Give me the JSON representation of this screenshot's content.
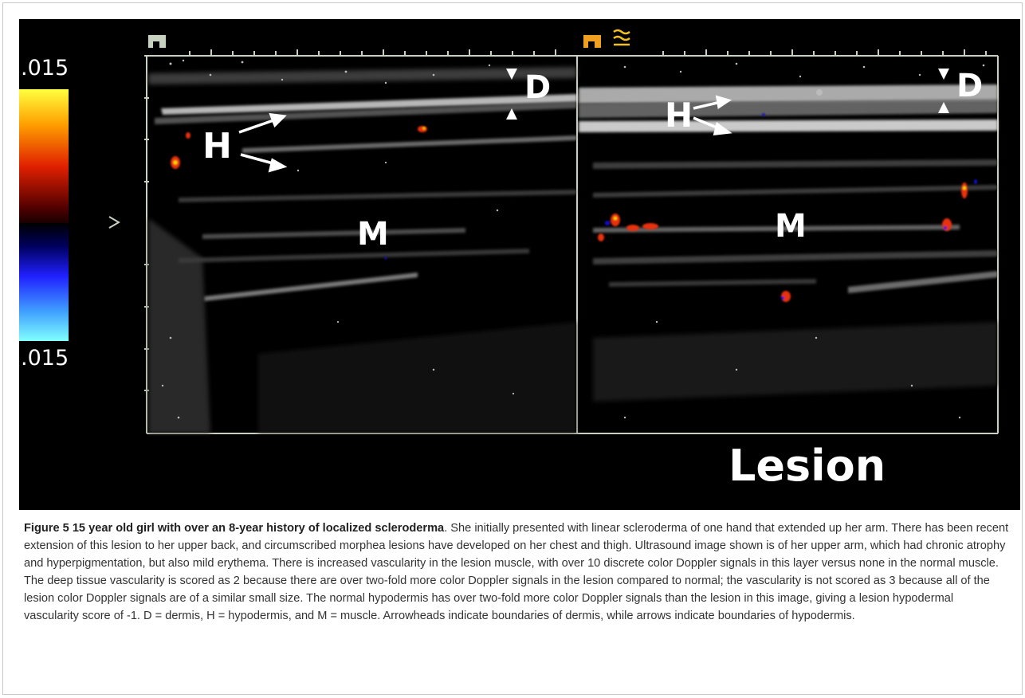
{
  "figure": {
    "image": {
      "color_scale": {
        "top_label": ".015",
        "bottom_label": ".015"
      },
      "left_panel": {
        "D_label": "D",
        "H_label": "H",
        "M_label": "M"
      },
      "right_panel": {
        "D_label": "D",
        "H_label": "H",
        "M_label": "M",
        "title": "Lesion"
      },
      "colors": {
        "background": "#000000",
        "doppler_red": "#e83010",
        "doppler_yellow": "#ffe000",
        "doppler_blue": "#1010d0",
        "frame_line": "#c8d0c0",
        "tick_icon_left": "#c8d0c0",
        "tick_icon_right": "#f0a020"
      }
    },
    "caption": {
      "title": "Figure 5 15 year old girl with over an 8-year history of localized scleroderma",
      "body": ". She initially presented with linear scleroderma of one hand that extended up her arm. There has been recent extension of this lesion to her upper back, and circumscribed morphea lesions have developed on her chest and thigh. Ultrasound image shown is of her upper arm, which had chronic atrophy and hyperpigmentation, but also mild erythema. There is increased vascularity in the lesion muscle, with over 10 discrete color Doppler signals in this layer versus none in the normal muscle. The deep tissue vascularity is scored as 2 because there are over two-fold more color Doppler signals in the lesion compared to normal; the vascularity is not scored as 3 because all of the lesion color Doppler signals are of a similar small size. The normal hypodermis has over two-fold more color Doppler signals than the lesion in this image, giving a lesion hypodermal vascularity score of -1. D = dermis, H = hypodermis, and M = muscle. Arrowheads indicate boundaries of dermis, while arrows indicate boundaries of hypodermis."
    }
  }
}
